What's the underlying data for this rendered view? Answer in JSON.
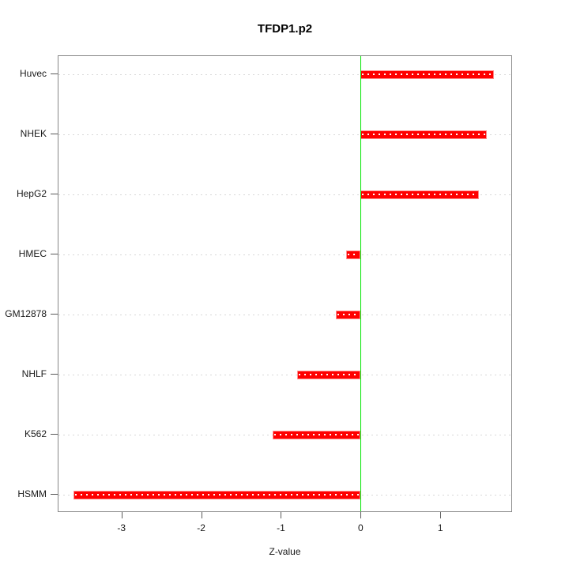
{
  "chart_data": {
    "type": "bar",
    "orientation": "horizontal",
    "title": "TFDP1.p2",
    "xlabel": "Z-value",
    "ylabel": "",
    "categories": [
      "Huvec",
      "NHEK",
      "HepG2",
      "HMEC",
      "GM12878",
      "NHLF",
      "K562",
      "HSMM"
    ],
    "values": [
      1.67,
      1.58,
      1.48,
      -0.18,
      -0.31,
      -0.8,
      -1.1,
      -3.6
    ],
    "xlim": [
      -3.79,
      1.89
    ],
    "x_ticks": [
      -3,
      -2,
      -1,
      0,
      1
    ],
    "grid": true,
    "grid_style": "dotted",
    "zero_line_x": 0,
    "legend": "none",
    "colors": {
      "bar": "#ff0000",
      "bar_border": "#ff8d8d",
      "bar_stripe": "#ffffff",
      "zero_line": "#00e400",
      "gridline": "#d8d8d8",
      "box_border": "#878787",
      "tick": "#5a5a5a",
      "text": "#1a1a1a"
    }
  }
}
